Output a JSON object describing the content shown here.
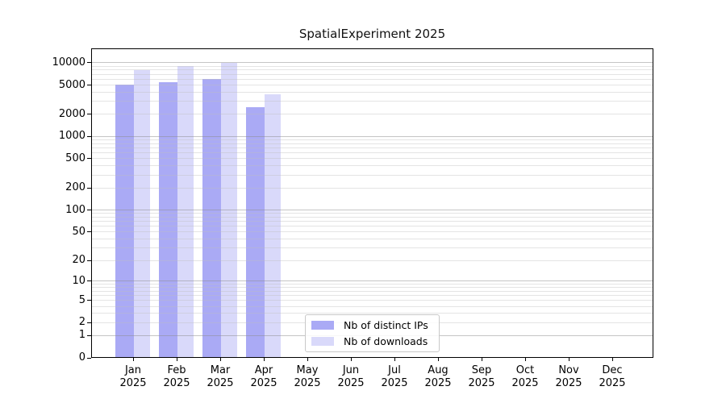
{
  "chart_data": {
    "type": "bar",
    "title": "SpatialExperiment 2025",
    "categories": [
      "Jan",
      "Feb",
      "Mar",
      "Apr",
      "May",
      "Jun",
      "Jul",
      "Aug",
      "Sep",
      "Oct",
      "Nov",
      "Dec"
    ],
    "year_label": "2025",
    "series": [
      {
        "name": "Nb of distinct IPs",
        "color": "#aaaaf5",
        "values": [
          5000,
          5400,
          5900,
          2500,
          null,
          null,
          null,
          null,
          null,
          null,
          null,
          null
        ]
      },
      {
        "name": "Nb of downloads",
        "color": "#d9d9fa",
        "values": [
          7900,
          9000,
          10000,
          3700,
          null,
          null,
          null,
          null,
          null,
          null,
          null,
          null
        ]
      }
    ],
    "y_ticks": [
      0,
      1,
      2,
      5,
      10,
      20,
      50,
      100,
      200,
      500,
      1000,
      2000,
      5000,
      10000
    ],
    "y_scale": "log(value+1)",
    "ylim": [
      0,
      15000
    ],
    "xlabel": "",
    "ylabel": "",
    "grid": true,
    "legend_position": "lower center"
  },
  "colors": {
    "grid_major": "rgba(140,140,140,0.5)",
    "grid_minor": "rgba(190,190,190,0.42)",
    "axis": "#000000"
  }
}
